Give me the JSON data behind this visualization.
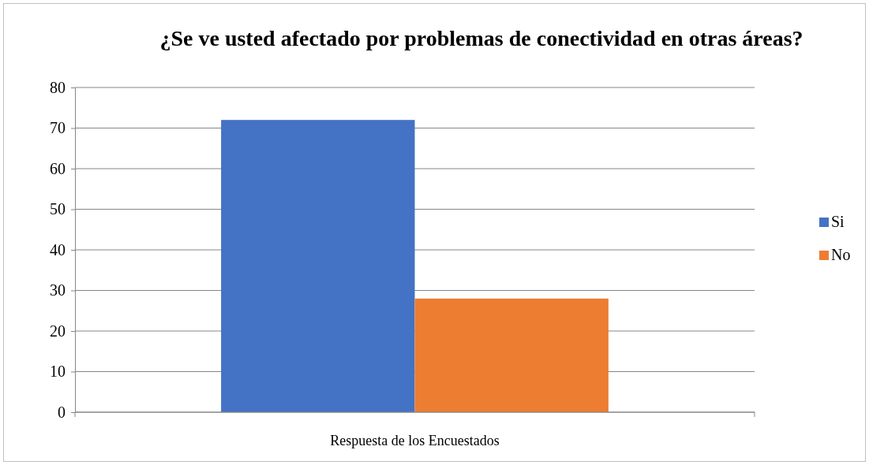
{
  "chart_data": {
    "type": "bar",
    "title": "¿Se ve usted afectado por problemas de conectividad en otras áreas?",
    "categories": [
      "Respuesta de los Encuestados"
    ],
    "series": [
      {
        "name": "Si",
        "color": "#4472c4",
        "values": [
          72
        ]
      },
      {
        "name": "No",
        "color": "#ed7d31",
        "values": [
          28
        ]
      }
    ],
    "ylim": [
      0,
      80
    ],
    "yticks": [
      0,
      10,
      20,
      30,
      40,
      50,
      60,
      70,
      80
    ],
    "grid": "y",
    "legend": "right"
  }
}
